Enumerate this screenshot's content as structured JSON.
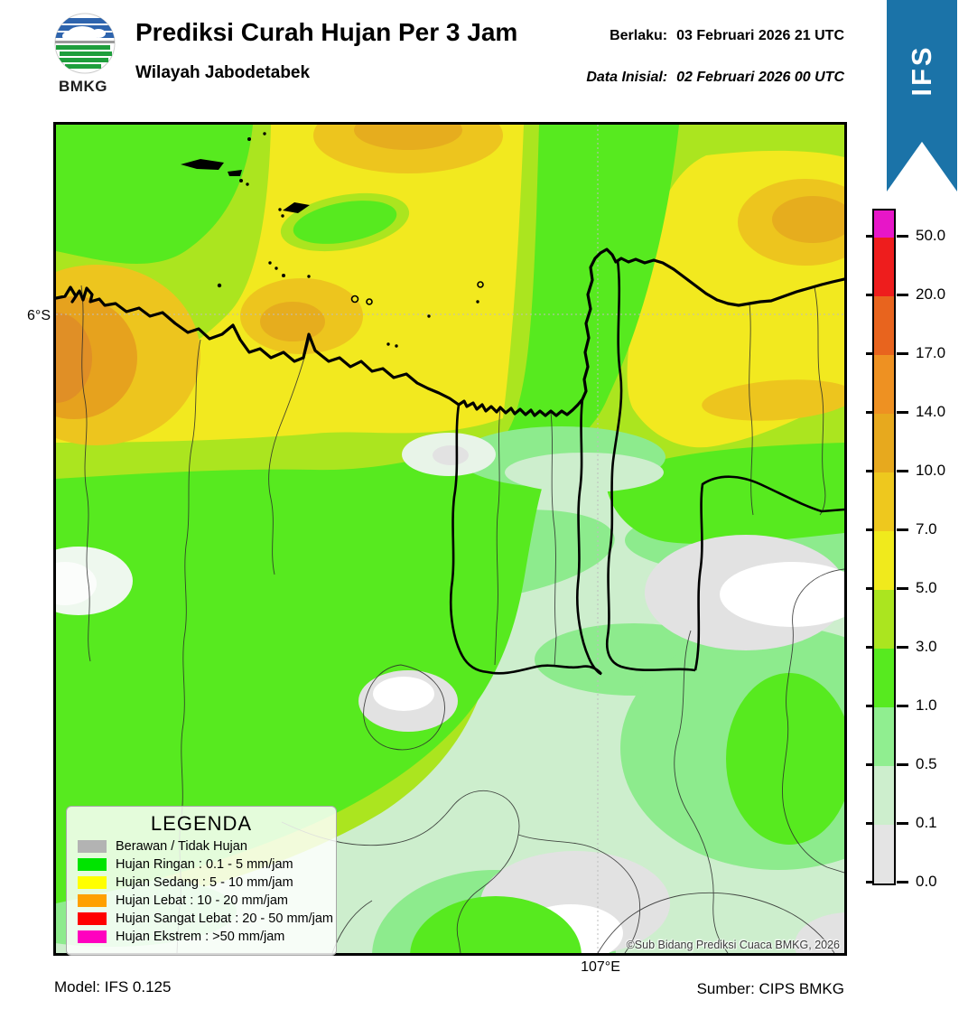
{
  "header": {
    "title": "Prediksi Curah Hujan Per 3 Jam",
    "subtitle": "Wilayah Jabodetabek",
    "valid_label": "Berlaku:",
    "valid_value": "03 Februari 2026 21 UTC",
    "init_label": "Data Inisial:",
    "init_value": "02 Februari 2026 00 UTC",
    "logo_text": "BMKG",
    "model_badge": "IFS",
    "badge_color": "#1b73a8"
  },
  "map": {
    "lat_label": "6°S",
    "lon_label": "107°E",
    "copyright": "©Sub Bidang Prediksi Cuaca BMKG, 2026",
    "palette": {
      "sea_yellow": "#f2e91f",
      "yellow_green": "#abe51f",
      "bright_green": "#57ea1f",
      "light_green": "#8deb8d",
      "pale_green": "#cdeecd",
      "cloud_gray": "#e2e2e2",
      "cloud_white": "#ffffff",
      "gold": "#edc51e",
      "orange": "#e6a21e",
      "deep_orange": "#e08f26"
    }
  },
  "colorbar": {
    "tick_labels": [
      "50.0",
      "20.0",
      "17.0",
      "14.0",
      "10.0",
      "7.0",
      "5.0",
      "3.0",
      "1.0",
      "0.5",
      "0.1",
      "0.0"
    ],
    "segment_colors": [
      "#e716c8",
      "#ee1d1d",
      "#e8641e",
      "#ee9122",
      "#e7a91e",
      "#eec81e",
      "#f0ea1c",
      "#abe51f",
      "#57ea1f",
      "#90ee90",
      "#cdeecd",
      "#e4e4e4"
    ]
  },
  "legend": {
    "title": "LEGENDA",
    "items": [
      {
        "label": "Berawan / Tidak Hujan",
        "color": "#b3b3b3"
      },
      {
        "label": "Hujan Ringan : 0.1 - 5 mm/jam",
        "color": "#00e400"
      },
      {
        "label": "Hujan Sedang : 5 - 10 mm/jam",
        "color": "#ffff00"
      },
      {
        "label": "Hujan Lebat : 10 - 20 mm/jam",
        "color": "#ffa000"
      },
      {
        "label": "Hujan Sangat Lebat : 20 - 50 mm/jam",
        "color": "#ff0000"
      },
      {
        "label": "Hujan Ekstrem : >50 mm/jam",
        "color": "#ff00bf"
      }
    ]
  },
  "footer": {
    "model": "Model: IFS 0.125",
    "source": "Sumber: CIPS BMKG"
  }
}
